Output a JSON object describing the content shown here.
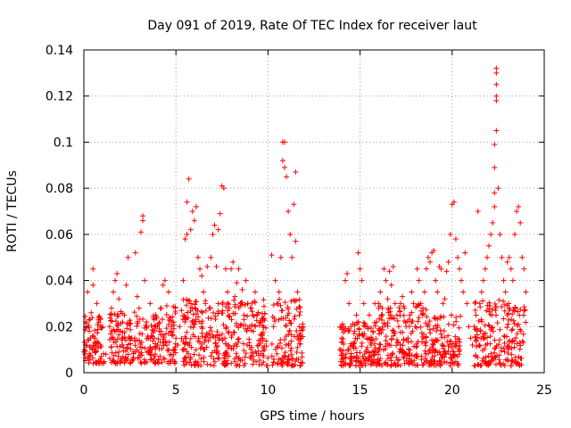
{
  "chart_data": {
    "type": "scatter",
    "title": "Day 091 of 2019, Rate Of TEC Index for receiver laut",
    "xlabel": "GPS time / hours",
    "ylabel": "ROTI / TECUs",
    "xlim": [
      0,
      25
    ],
    "ylim": [
      0,
      0.14
    ],
    "x_ticks": [
      0,
      5,
      10,
      15,
      20,
      25
    ],
    "x_tick_labels": [
      "0",
      "5",
      "10",
      "15",
      "20",
      "25"
    ],
    "y_ticks": [
      0,
      0.02,
      0.04,
      0.06,
      0.08,
      0.1,
      0.12,
      0.14
    ],
    "y_tick_labels": [
      "0",
      "0.02",
      "0.04",
      "0.06",
      "0.08",
      "0.1",
      "0.12",
      "0.14"
    ],
    "grid": true,
    "marker": "+",
    "color": "#ff0000",
    "series": [
      {
        "name": "ROTI",
        "points": [
          [
            0.0,
            0.009
          ],
          [
            0.1,
            0.012
          ],
          [
            0.1,
            0.022
          ],
          [
            0.2,
            0.035
          ],
          [
            0.3,
            0.018
          ],
          [
            0.4,
            0.026
          ],
          [
            0.5,
            0.045
          ],
          [
            0.5,
            0.038
          ],
          [
            0.6,
            0.015
          ],
          [
            0.7,
            0.03
          ],
          [
            0.8,
            0.024
          ],
          [
            0.9,
            0.012
          ],
          [
            1.2,
            0.008
          ],
          [
            1.4,
            0.02
          ],
          [
            1.5,
            0.028
          ],
          [
            1.6,
            0.035
          ],
          [
            1.7,
            0.04
          ],
          [
            1.8,
            0.043
          ],
          [
            1.9,
            0.032
          ],
          [
            2.0,
            0.018
          ],
          [
            2.1,
            0.012
          ],
          [
            2.2,
            0.025
          ],
          [
            2.3,
            0.038
          ],
          [
            2.4,
            0.05
          ],
          [
            2.5,
            0.021
          ],
          [
            2.6,
            0.015
          ],
          [
            2.7,
            0.009
          ],
          [
            2.8,
            0.052
          ],
          [
            2.9,
            0.033
          ],
          [
            3.0,
            0.028
          ],
          [
            3.1,
            0.061
          ],
          [
            3.2,
            0.066
          ],
          [
            3.2,
            0.068
          ],
          [
            3.3,
            0.04
          ],
          [
            3.4,
            0.022
          ],
          [
            3.5,
            0.015
          ],
          [
            3.6,
            0.03
          ],
          [
            3.7,
            0.01
          ],
          [
            3.9,
            0.025
          ],
          [
            4.0,
            0.012
          ],
          [
            4.1,
            0.018
          ],
          [
            4.2,
            0.028
          ],
          [
            4.3,
            0.038
          ],
          [
            4.4,
            0.04
          ],
          [
            4.5,
            0.029
          ],
          [
            4.6,
            0.035
          ],
          [
            4.7,
            0.018
          ],
          [
            4.8,
            0.022
          ],
          [
            4.9,
            0.01
          ],
          [
            5.0,
            0.015
          ],
          [
            5.1,
            0.012
          ],
          [
            5.2,
            0.02
          ],
          [
            5.3,
            0.027
          ],
          [
            5.4,
            0.04
          ],
          [
            5.5,
            0.058
          ],
          [
            5.6,
            0.06
          ],
          [
            5.6,
            0.074
          ],
          [
            5.7,
            0.084
          ],
          [
            5.8,
            0.062
          ],
          [
            5.9,
            0.07
          ],
          [
            6.0,
            0.066
          ],
          [
            6.1,
            0.072
          ],
          [
            6.2,
            0.05
          ],
          [
            6.3,
            0.045
          ],
          [
            6.4,
            0.042
          ],
          [
            6.5,
            0.035
          ],
          [
            6.6,
            0.03
          ],
          [
            6.7,
            0.046
          ],
          [
            6.8,
            0.028
          ],
          [
            6.9,
            0.05
          ],
          [
            7.0,
            0.06
          ],
          [
            7.1,
            0.064
          ],
          [
            7.2,
            0.046
          ],
          [
            7.3,
            0.062
          ],
          [
            7.4,
            0.069
          ],
          [
            7.5,
            0.081
          ],
          [
            7.6,
            0.08
          ],
          [
            7.7,
            0.045
          ],
          [
            7.8,
            0.035
          ],
          [
            7.9,
            0.028
          ],
          [
            8.0,
            0.045
          ],
          [
            8.1,
            0.048
          ],
          [
            8.2,
            0.033
          ],
          [
            8.3,
            0.039
          ],
          [
            8.4,
            0.045
          ],
          [
            8.5,
            0.03
          ],
          [
            8.6,
            0.036
          ],
          [
            8.7,
            0.025
          ],
          [
            8.8,
            0.04
          ],
          [
            8.9,
            0.03
          ],
          [
            9.0,
            0.02
          ],
          [
            9.1,
            0.028
          ],
          [
            9.2,
            0.018
          ],
          [
            9.3,
            0.035
          ],
          [
            9.4,
            0.025
          ],
          [
            9.5,
            0.012
          ],
          [
            9.6,
            0.022
          ],
          [
            9.7,
            0.015
          ],
          [
            9.8,
            0.01
          ],
          [
            10.2,
            0.051
          ],
          [
            10.3,
            0.02
          ],
          [
            10.4,
            0.04
          ],
          [
            10.5,
            0.03
          ],
          [
            10.6,
            0.035
          ],
          [
            10.7,
            0.05
          ],
          [
            10.8,
            0.1
          ],
          [
            10.8,
            0.092
          ],
          [
            10.9,
            0.089
          ],
          [
            10.9,
            0.1
          ],
          [
            11.0,
            0.085
          ],
          [
            11.1,
            0.07
          ],
          [
            11.2,
            0.06
          ],
          [
            11.3,
            0.05
          ],
          [
            11.4,
            0.073
          ],
          [
            11.5,
            0.087
          ],
          [
            11.5,
            0.057
          ],
          [
            11.6,
            0.035
          ],
          [
            11.7,
            0.025
          ],
          [
            11.8,
            0.015
          ],
          [
            11.9,
            0.02
          ],
          [
            13.9,
            0.01
          ],
          [
            14.0,
            0.015
          ],
          [
            14.1,
            0.02
          ],
          [
            14.2,
            0.04
          ],
          [
            14.3,
            0.043
          ],
          [
            14.4,
            0.03
          ],
          [
            14.5,
            0.02
          ],
          [
            14.6,
            0.012
          ],
          [
            14.7,
            0.018
          ],
          [
            14.8,
            0.025
          ],
          [
            14.9,
            0.052
          ],
          [
            15.0,
            0.045
          ],
          [
            15.1,
            0.04
          ],
          [
            15.2,
            0.03
          ],
          [
            15.3,
            0.02
          ],
          [
            15.4,
            0.015
          ],
          [
            15.5,
            0.025
          ],
          [
            15.6,
            0.012
          ],
          [
            15.7,
            0.018
          ],
          [
            15.8,
            0.03
          ],
          [
            15.9,
            0.022
          ],
          [
            16.0,
            0.03
          ],
          [
            16.1,
            0.035
          ],
          [
            16.2,
            0.028
          ],
          [
            16.3,
            0.045
          ],
          [
            16.4,
            0.04
          ],
          [
            16.5,
            0.032
          ],
          [
            16.6,
            0.044
          ],
          [
            16.7,
            0.038
          ],
          [
            16.8,
            0.046
          ],
          [
            16.9,
            0.03
          ],
          [
            17.0,
            0.025
          ],
          [
            17.1,
            0.02
          ],
          [
            17.2,
            0.03
          ],
          [
            17.3,
            0.033
          ],
          [
            17.4,
            0.028
          ],
          [
            17.5,
            0.02
          ],
          [
            17.6,
            0.015
          ],
          [
            17.7,
            0.025
          ],
          [
            17.8,
            0.035
          ],
          [
            17.9,
            0.03
          ],
          [
            18.0,
            0.02
          ],
          [
            18.1,
            0.045
          ],
          [
            18.2,
            0.04
          ],
          [
            18.3,
            0.03
          ],
          [
            18.4,
            0.025
          ],
          [
            18.5,
            0.035
          ],
          [
            18.6,
            0.045
          ],
          [
            18.7,
            0.05
          ],
          [
            18.8,
            0.048
          ],
          [
            18.9,
            0.052
          ],
          [
            19.0,
            0.053
          ],
          [
            19.1,
            0.04
          ],
          [
            19.2,
            0.035
          ],
          [
            19.3,
            0.046
          ],
          [
            19.4,
            0.045
          ],
          [
            19.5,
            0.03
          ],
          [
            19.6,
            0.032
          ],
          [
            19.7,
            0.044
          ],
          [
            19.8,
            0.048
          ],
          [
            19.9,
            0.06
          ],
          [
            20.0,
            0.073
          ],
          [
            20.1,
            0.074
          ],
          [
            20.2,
            0.058
          ],
          [
            20.3,
            0.05
          ],
          [
            20.4,
            0.045
          ],
          [
            20.5,
            0.04
          ],
          [
            20.6,
            0.035
          ],
          [
            20.7,
            0.052
          ],
          [
            20.8,
            0.03
          ],
          [
            20.9,
            0.02
          ],
          [
            21.0,
            0.015
          ],
          [
            21.1,
            0.012
          ],
          [
            21.2,
            0.02
          ],
          [
            21.3,
            0.025
          ],
          [
            21.4,
            0.07
          ],
          [
            21.5,
            0.03
          ],
          [
            21.6,
            0.035
          ],
          [
            21.7,
            0.04
          ],
          [
            21.8,
            0.045
          ],
          [
            21.9,
            0.05
          ],
          [
            22.0,
            0.055
          ],
          [
            22.1,
            0.06
          ],
          [
            22.2,
            0.065
          ],
          [
            22.3,
            0.072
          ],
          [
            22.3,
            0.078
          ],
          [
            22.3,
            0.089
          ],
          [
            22.3,
            0.099
          ],
          [
            22.4,
            0.105
          ],
          [
            22.4,
            0.118
          ],
          [
            22.4,
            0.12
          ],
          [
            22.4,
            0.125
          ],
          [
            22.4,
            0.13
          ],
          [
            22.4,
            0.132
          ],
          [
            22.5,
            0.08
          ],
          [
            22.6,
            0.06
          ],
          [
            22.7,
            0.05
          ],
          [
            22.8,
            0.04
          ],
          [
            22.9,
            0.035
          ],
          [
            23.0,
            0.048
          ],
          [
            23.1,
            0.05
          ],
          [
            23.2,
            0.045
          ],
          [
            23.3,
            0.04
          ],
          [
            23.4,
            0.06
          ],
          [
            23.5,
            0.07
          ],
          [
            23.6,
            0.072
          ],
          [
            23.7,
            0.065
          ],
          [
            23.8,
            0.05
          ],
          [
            23.9,
            0.045
          ],
          [
            24.0,
            0.035
          ]
        ],
        "dense_bands": [
          {
            "x": [
              0.0,
              1.1
            ],
            "y": [
              0.004,
              0.025
            ]
          },
          {
            "x": [
              1.4,
              3.0
            ],
            "y": [
              0.004,
              0.027
            ]
          },
          {
            "x": [
              3.0,
              4.0
            ],
            "y": [
              0.004,
              0.025
            ]
          },
          {
            "x": [
              4.0,
              5.0
            ],
            "y": [
              0.004,
              0.03
            ]
          },
          {
            "x": [
              5.3,
              7.5
            ],
            "y": [
              0.003,
              0.032
            ]
          },
          {
            "x": [
              7.5,
              10.0
            ],
            "y": [
              0.003,
              0.032
            ]
          },
          {
            "x": [
              10.2,
              11.9
            ],
            "y": [
              0.003,
              0.032
            ]
          },
          {
            "x": [
              13.9,
              16.0
            ],
            "y": [
              0.003,
              0.022
            ]
          },
          {
            "x": [
              16.0,
              18.6
            ],
            "y": [
              0.003,
              0.03
            ]
          },
          {
            "x": [
              18.6,
              20.5
            ],
            "y": [
              0.003,
              0.025
            ]
          },
          {
            "x": [
              21.2,
              24.0
            ],
            "y": [
              0.003,
              0.032
            ]
          }
        ]
      }
    ]
  }
}
